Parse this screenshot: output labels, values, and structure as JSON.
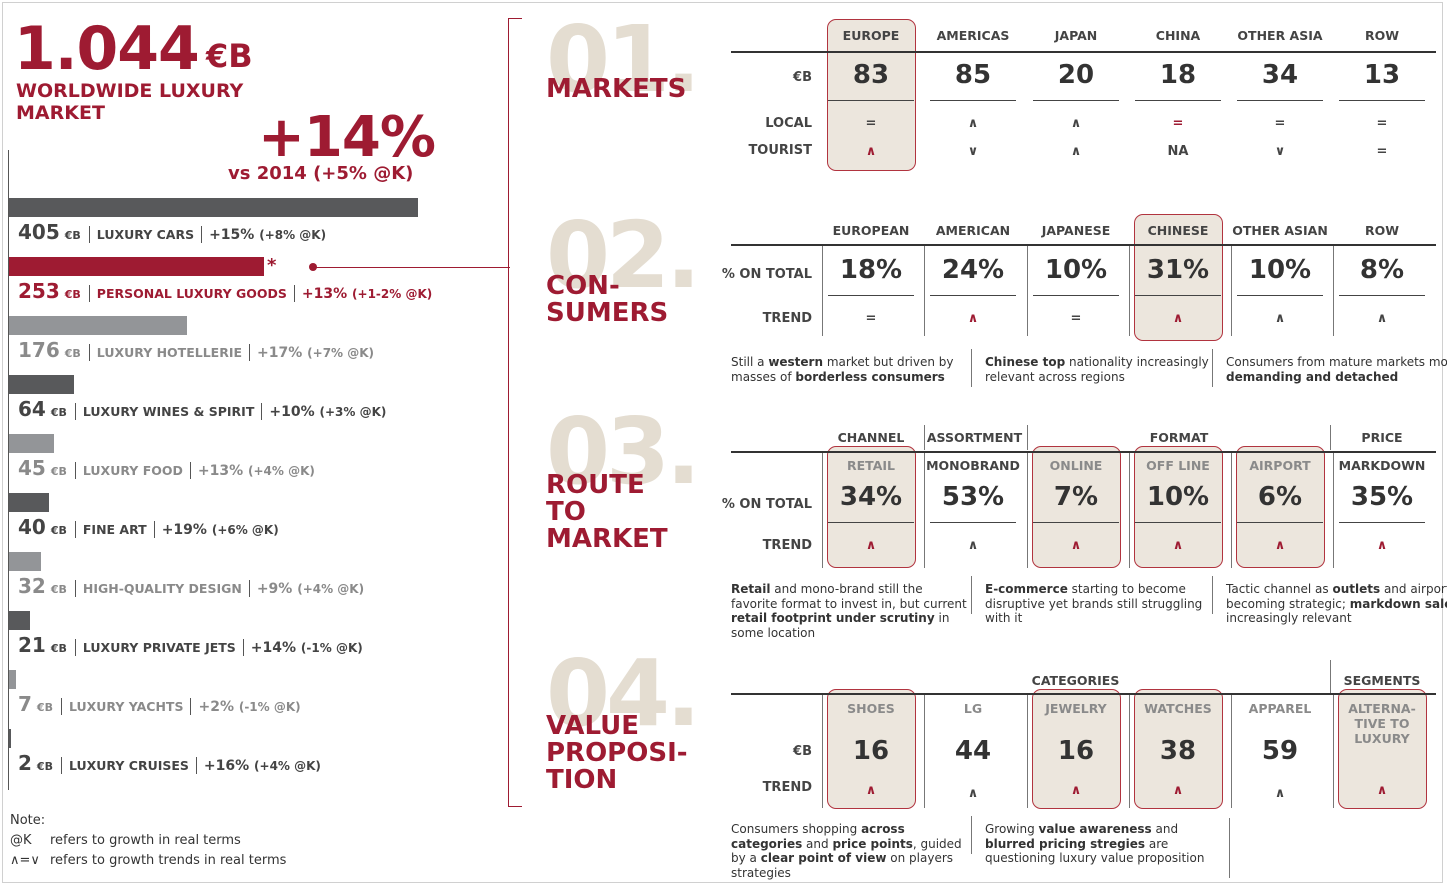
{
  "header": {
    "total_value": "1.044",
    "total_unit": "€B",
    "total_label": "WORLDWIDE LUXURY MARKET",
    "growth_value": "+14%",
    "growth_sub": "vs 2014 (+5% @K)"
  },
  "chart_data": {
    "type": "bar",
    "orientation": "horizontal",
    "unit": "€B",
    "xlim": [
      0,
      405
    ],
    "categories": [
      "LUXURY CARS",
      "PERSONAL LUXURY GOODS",
      "LUXURY HOTELLERIE",
      "LUXURY WINES & SPIRIT",
      "LUXURY FOOD",
      "FINE ART",
      "HIGH-QUALITY DESIGN",
      "LUXURY PRIVATE JETS",
      "LUXURY YACHTS",
      "LUXURY CRUISES"
    ],
    "values": [
      405,
      253,
      176,
      64,
      45,
      40,
      32,
      21,
      7,
      2
    ],
    "growth": [
      "+15%",
      "+13%",
      "+17%",
      "+10%",
      "+13%",
      "+19%",
      "+9%",
      "+14%",
      "+2%",
      "+16%"
    ],
    "growth_real": [
      "(+8% @K)",
      "(+1-2% @K)",
      "(+7% @K)",
      "(+3% @K)",
      "(+4% @K)",
      "(+6% @K)",
      "(+4% @K)",
      "(-1% @K)",
      "(-1% @K)",
      "(+4% @K)"
    ],
    "highlight": "PERSONAL LUXURY GOODS",
    "bar_colors": [
      "#58595b",
      "#9e1b32",
      "#939598",
      "#58595b",
      "#939598",
      "#58595b",
      "#939598",
      "#58595b",
      "#939598",
      "#58595b"
    ],
    "legend": "none",
    "grid": false
  },
  "segment_text_colors": [
    "#444",
    "#9e1b32",
    "#8a8a8a",
    "#444",
    "#8a8a8a",
    "#444",
    "#8a8a8a",
    "#444",
    "#8a8a8a",
    "#444"
  ],
  "star": "*",
  "note": {
    "title": "Note:",
    "items": [
      {
        "key": "@K",
        "text": "refers to growth in real terms"
      },
      {
        "key": "∧=∨",
        "text": "refers to growth trends in real terms"
      }
    ]
  },
  "sections": {
    "markets": {
      "num": "01.",
      "title": [
        "MARKETS"
      ],
      "columns": [
        "EUROPE",
        "AMERICAS",
        "JAPAN",
        "CHINA",
        "OTHER ASIA",
        "ROW"
      ],
      "row_labels": [
        "€B",
        "LOCAL",
        "TOURIST"
      ],
      "values": [
        "83",
        "85",
        "20",
        "18",
        "34",
        "13"
      ],
      "local": [
        "=",
        "∧",
        "∧",
        "=",
        "=",
        "="
      ],
      "tourist": [
        "∧",
        "∨",
        "∧",
        "NA",
        "∨",
        "="
      ],
      "highlight": "EUROPE"
    },
    "consumers": {
      "num": "02.",
      "title": [
        "CON-",
        "SUMERS"
      ],
      "columns": [
        "EUROPEAN",
        "AMERICAN",
        "JAPANESE",
        "CHINESE",
        "OTHER ASIAN",
        "ROW"
      ],
      "row_labels": [
        "% ON TOTAL",
        "TREND"
      ],
      "values": [
        "18%",
        "24%",
        "10%",
        "31%",
        "10%",
        "8%"
      ],
      "trend": [
        "=",
        "∧",
        "=",
        "∧",
        "∧",
        "∧"
      ],
      "highlight": "CHINESE",
      "notes": [
        [
          {
            "t": "Still a "
          },
          {
            "t": "western",
            "b": true
          },
          {
            "t": " market but driven by masses of "
          },
          {
            "t": "borderless consumers",
            "b": true
          }
        ],
        [
          {
            "t": "Chinese top",
            "b": true
          },
          {
            "t": " nationality increasingly relevant across regions"
          }
        ],
        [
          {
            "t": "Consumers from mature markets more "
          },
          {
            "t": "demanding and detached",
            "b": true
          }
        ]
      ]
    },
    "route": {
      "num": "03.",
      "title": [
        "ROUTE",
        "TO",
        "MARKET"
      ],
      "groups": [
        "CHANNEL",
        "ASSORTMENT",
        "FORMAT",
        "PRICE"
      ],
      "columns": [
        "RETAIL",
        "MONOBRAND",
        "ONLINE",
        "OFF LINE",
        "AIRPORT",
        "MARKDOWN"
      ],
      "row_labels": [
        "% ON TOTAL",
        "TREND"
      ],
      "values": [
        "34%",
        "53%",
        "7%",
        "10%",
        "6%",
        "35%"
      ],
      "trend": [
        "∧",
        "∧",
        "∧",
        "∧",
        "∧",
        "∧"
      ],
      "notes": [
        [
          {
            "t": "Retail",
            "b": true
          },
          {
            "t": " and mono-brand still the favorite format to invest in, but current "
          },
          {
            "t": "retail footprint under scrutiny",
            "b": true
          },
          {
            "t": " in some location"
          }
        ],
        [
          {
            "t": "E-commerce",
            "b": true
          },
          {
            "t": " starting to become disruptive yet brands still struggling with it"
          }
        ],
        [
          {
            "t": "Tactic channel as "
          },
          {
            "t": "outlets",
            "b": true
          },
          {
            "t": " and airports becoming strategic; "
          },
          {
            "t": "markdown sales",
            "b": true
          },
          {
            "t": " increasingly relevant"
          }
        ]
      ]
    },
    "value": {
      "num": "04.",
      "title": [
        "VALUE",
        "PROPOSI-",
        "TION"
      ],
      "groups": [
        "CATEGORIES",
        "SEGMENTS"
      ],
      "columns": [
        "SHOES",
        "LG",
        "JEWELRY",
        "WATCHES",
        "APPAREL",
        "ALTERNA- TIVE TO LUXURY"
      ],
      "row_labels": [
        "€B",
        "TREND"
      ],
      "values": [
        "16",
        "44",
        "16",
        "38",
        "59",
        ""
      ],
      "trend": [
        "∧",
        "∧",
        "∧",
        "∧",
        "∧",
        "∧"
      ],
      "notes": [
        [
          {
            "t": "Consumers shopping "
          },
          {
            "t": "across categories",
            "b": true
          },
          {
            "t": " and "
          },
          {
            "t": "price points",
            "b": true
          },
          {
            "t": ", guided by a "
          },
          {
            "t": "clear point of view",
            "b": true
          },
          {
            "t": " on players strategies"
          }
        ],
        [
          {
            "t": "Growing "
          },
          {
            "t": "value awareness",
            "b": true
          },
          {
            "t": " and "
          },
          {
            "t": "blurred pricing stregies",
            "b": true
          },
          {
            "t": " are questioning luxury value proposition"
          }
        ]
      ]
    }
  }
}
